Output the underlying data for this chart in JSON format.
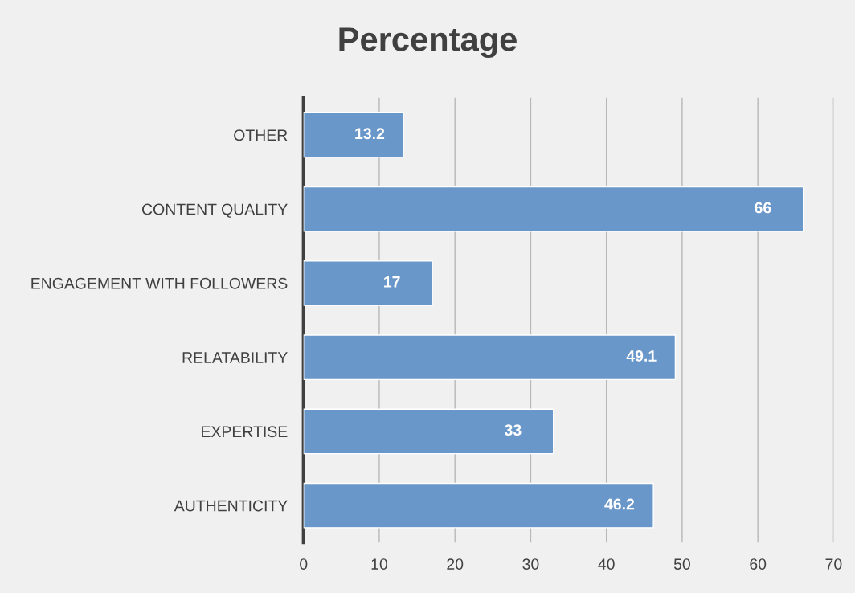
{
  "chart_data": {
    "type": "bar",
    "orientation": "horizontal",
    "title": "Percentage",
    "categories": [
      "OTHER",
      "CONTENT QUALITY",
      "ENGAGEMENT WITH FOLLOWERS",
      "RELATABILITY",
      "EXPERTISE",
      "AUTHENTICITY"
    ],
    "values": [
      13.2,
      66,
      17,
      49.1,
      33,
      46.2
    ],
    "color": "#6a97c9",
    "xlim": [
      0,
      70
    ],
    "xticks": [
      0,
      10,
      20,
      30,
      40,
      50,
      60,
      70
    ],
    "grid": "x",
    "data_labels": true
  }
}
